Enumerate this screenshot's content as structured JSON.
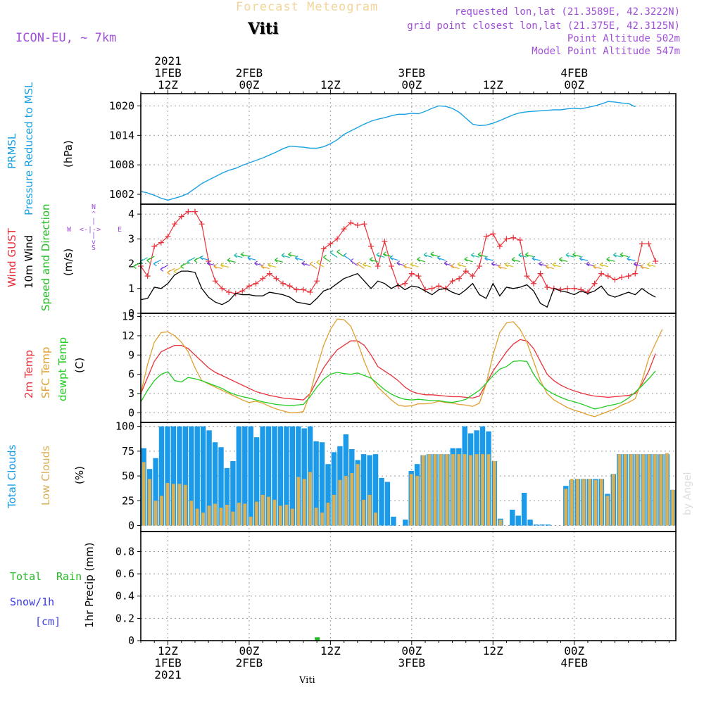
{
  "header": {
    "title": "Forecast Meteogram",
    "station": "Viti",
    "model": "ICON-EU, ~ 7km",
    "requested": "requested lon,lat (21.3589E, 42.3222N)",
    "grid_point": "grid point closest lon,lat (21.375E, 42.3125N)",
    "point_altitude": "Point Altitude 502m",
    "model_altitude": "Model Point Altitude 547m"
  },
  "footer": {
    "station": "Viti",
    "watermark": "by Angel"
  },
  "colors": {
    "pressure": "#1ba1e2",
    "gust": "#e8313a",
    "wind": "#000000",
    "direction": "#22bb22",
    "temp2m": "#e8313a",
    "sfctemp": "#e0a030",
    "dewpt": "#22cc22",
    "total_clouds": "#1a9ae8",
    "low_clouds": "#d9b057",
    "rain": "#22bb22",
    "snow": "#3a3ae8",
    "header": "#a050d8"
  },
  "time_axis": {
    "top_labels": [
      {
        "hour": 4,
        "lines": [
          "2021",
          "1FEB",
          "12Z"
        ]
      },
      {
        "hour": 16,
        "lines": [
          "2FEB",
          "00Z"
        ]
      },
      {
        "hour": 28,
        "lines": [
          "12Z"
        ]
      },
      {
        "hour": 40,
        "lines": [
          "3FEB",
          "00Z"
        ]
      },
      {
        "hour": 52,
        "lines": [
          "12Z"
        ]
      },
      {
        "hour": 64,
        "lines": [
          "4FEB",
          "00Z"
        ]
      }
    ],
    "bottom_labels": [
      {
        "hour": 4,
        "lines": [
          "12Z",
          "1FEB",
          "2021"
        ]
      },
      {
        "hour": 16,
        "lines": [
          "00Z",
          "2FEB"
        ]
      },
      {
        "hour": 28,
        "lines": [
          "12Z"
        ]
      },
      {
        "hour": 40,
        "lines": [
          "00Z",
          "3FEB"
        ]
      },
      {
        "hour": 52,
        "lines": [
          "12Z"
        ]
      },
      {
        "hour": 64,
        "lines": [
          "00Z",
          "4FEB"
        ]
      }
    ]
  },
  "panels": {
    "pressure": {
      "labels": [
        "PRMSL",
        "Pressure Reduced to MSL"
      ],
      "unit": "(hPa)",
      "ticks": [
        "1002",
        "1008",
        "1014",
        "1020"
      ]
    },
    "wind": {
      "labels": [
        "Wind GUST",
        "10m Wind",
        "Speed and Direction"
      ],
      "unit": "(m/s)",
      "ticks": [
        "0",
        "1",
        "2",
        "3",
        "4"
      ],
      "compass": {
        "n": "N",
        "s": "S",
        "w": "W",
        "e": "E",
        "arrow": "<-|->"
      }
    },
    "temp": {
      "labels": [
        "2m Temp",
        "SFC Temp",
        "dewpt Temp"
      ],
      "unit": "(C)",
      "ticks": [
        "0",
        "3",
        "6",
        "9",
        "12",
        "15"
      ]
    },
    "clouds": {
      "labels": [
        "Total Clouds",
        "Low Clouds"
      ],
      "unit": "(%)",
      "ticks": [
        "0",
        "25",
        "50",
        "75",
        "100"
      ]
    },
    "precip": {
      "labels": [
        "Total",
        "Rain",
        "Snow/1h",
        "[cm]"
      ],
      "unit": "1hr Precip (mm)",
      "ticks": [
        "0",
        "0.2",
        "0.4",
        "0.6",
        "0.8"
      ]
    }
  },
  "chart_data": {
    "type": "line",
    "x_unit": "hours from 2021-02-01 08Z (hourly steps)",
    "xlim": [
      0,
      79
    ],
    "series": [
      {
        "name": "PRMSL (hPa)",
        "panel": "pressure",
        "ylim": [
          1000,
          1022.5
        ],
        "values": [
          1002.6,
          1002.3,
          1001.8,
          1001.2,
          1000.8,
          1001.2,
          1001.6,
          1002.2,
          1003.2,
          1004.2,
          1004.9,
          1005.6,
          1006.3,
          1006.9,
          1007.3,
          1007.9,
          1008.4,
          1008.9,
          1009.4,
          1010.0,
          1010.6,
          1011.3,
          1011.8,
          1011.7,
          1011.6,
          1011.4,
          1011.4,
          1011.7,
          1012.3,
          1013.1,
          1014.2,
          1014.9,
          1015.6,
          1016.3,
          1016.9,
          1017.3,
          1017.6,
          1018.0,
          1018.3,
          1018.3,
          1018.5,
          1018.4,
          1018.9,
          1019.5,
          1020.0,
          1019.9,
          1019.5,
          1018.7,
          1017.5,
          1016.3,
          1016.0,
          1016.1,
          1016.5,
          1017.0,
          1017.6,
          1018.2,
          1018.6,
          1018.8,
          1018.9,
          1019.0,
          1019.1,
          1019.2,
          1019.2,
          1019.4,
          1019.5,
          1019.4,
          1019.7,
          1020.0,
          1020.4,
          1020.9,
          1020.8,
          1020.6,
          1020.5,
          1019.8
        ]
      },
      {
        "name": "Wind GUST (m/s)",
        "panel": "wind",
        "ylim": [
          0,
          4.4
        ],
        "values": [
          1.9,
          1.5,
          2.7,
          2.85,
          3.1,
          3.6,
          3.9,
          4.1,
          4.1,
          3.6,
          2.1,
          1.3,
          1.0,
          0.85,
          0.8,
          0.9,
          1.1,
          1.2,
          1.4,
          1.6,
          1.4,
          1.2,
          1.1,
          0.95,
          0.95,
          0.85,
          1.3,
          2.6,
          2.8,
          3.0,
          3.4,
          3.65,
          3.55,
          3.6,
          2.7,
          1.9,
          2.9,
          1.9,
          1.1,
          1.2,
          1.6,
          1.5,
          0.95,
          1.0,
          1.1,
          1.0,
          1.3,
          1.4,
          1.7,
          1.5,
          1.9,
          3.1,
          3.2,
          2.7,
          3.0,
          3.05,
          2.95,
          1.5,
          1.2,
          1.6,
          1.05,
          1.0,
          0.95,
          1.0,
          1.0,
          0.95,
          0.85,
          1.2,
          1.6,
          1.5,
          1.35,
          1.45,
          1.5,
          1.6,
          2.8,
          2.8,
          2.1
        ]
      },
      {
        "name": "10m Wind (m/s)",
        "panel": "wind",
        "ylim": [
          0,
          4.4
        ],
        "values": [
          0.55,
          0.6,
          1.05,
          1.0,
          1.2,
          1.55,
          1.7,
          1.7,
          1.65,
          1.0,
          0.65,
          0.45,
          0.35,
          0.5,
          0.8,
          0.75,
          0.75,
          0.7,
          0.7,
          0.85,
          0.8,
          0.75,
          0.65,
          0.45,
          0.4,
          0.35,
          0.6,
          0.9,
          1.0,
          1.2,
          1.4,
          1.5,
          1.6,
          1.3,
          1.0,
          1.3,
          1.2,
          1.0,
          1.15,
          0.95,
          1.1,
          1.05,
          0.9,
          0.75,
          0.95,
          1.0,
          0.85,
          0.75,
          0.95,
          1.2,
          0.75,
          0.6,
          1.2,
          0.7,
          1.05,
          1.0,
          1.05,
          1.15,
          0.9,
          0.4,
          0.25,
          1.0,
          0.9,
          0.85,
          0.75,
          0.9,
          0.8,
          0.9,
          1.1,
          0.75,
          0.65,
          0.75,
          0.85,
          0.75,
          1.0,
          0.8,
          0.65
        ]
      },
      {
        "name": "2m Temp (C)",
        "panel": "temp",
        "ylim": [
          -1.5,
          15.5
        ],
        "values": [
          3.0,
          5.5,
          8.0,
          9.5,
          10.0,
          10.5,
          10.5,
          10.0,
          9.0,
          8.0,
          7.0,
          6.3,
          5.8,
          5.3,
          4.8,
          4.3,
          3.8,
          3.3,
          3.0,
          2.7,
          2.5,
          2.3,
          2.2,
          2.1,
          2.0,
          3.0,
          5.0,
          7.0,
          8.5,
          9.8,
          10.5,
          11.2,
          11.2,
          10.5,
          9.0,
          7.2,
          6.5,
          5.8,
          5.0,
          4.0,
          3.3,
          3.0,
          2.8,
          2.8,
          2.7,
          2.6,
          2.5,
          2.5,
          2.4,
          2.3,
          2.6,
          4.5,
          6.5,
          8.0,
          9.5,
          10.7,
          11.4,
          11.2,
          10.0,
          8.0,
          6.0,
          5.0,
          4.3,
          3.8,
          3.4,
          3.1,
          2.8,
          2.6,
          2.5,
          2.4,
          2.5,
          2.6,
          2.7,
          3.0,
          4.5,
          6.5,
          9.2
        ]
      },
      {
        "name": "SFC Temp (C)",
        "panel": "temp",
        "ylim": [
          -1.5,
          15.5
        ],
        "values": [
          3.0,
          7.5,
          11.0,
          12.5,
          12.6,
          12.0,
          11.0,
          9.5,
          7.0,
          5.0,
          4.5,
          4.0,
          3.5,
          3.0,
          2.5,
          2.0,
          1.6,
          1.8,
          1.5,
          1.0,
          0.6,
          0.3,
          0.0,
          0.0,
          0.2,
          3.0,
          7.0,
          10.5,
          13.0,
          14.6,
          14.5,
          13.5,
          11.0,
          8.0,
          5.5,
          4.0,
          3.0,
          2.0,
          1.2,
          1.0,
          1.1,
          1.4,
          1.4,
          1.5,
          1.8,
          1.6,
          1.5,
          1.3,
          1.2,
          1.0,
          1.5,
          4.5,
          9.0,
          12.5,
          14.0,
          14.2,
          13.0,
          11.0,
          8.0,
          5.0,
          3.0,
          2.0,
          1.4,
          0.8,
          0.4,
          0.1,
          -0.3,
          -0.6,
          -0.2,
          0.2,
          0.6,
          1.2,
          1.6,
          2.2,
          5.0,
          8.5,
          10.8,
          13.0
        ]
      },
      {
        "name": "dewpt Temp (C)",
        "panel": "temp",
        "ylim": [
          -1.5,
          15.5
        ],
        "values": [
          1.7,
          3.5,
          5.0,
          6.0,
          6.4,
          5.0,
          4.8,
          5.5,
          5.3,
          5.0,
          4.6,
          4.2,
          3.8,
          3.2,
          2.8,
          2.5,
          2.3,
          2.0,
          1.7,
          1.5,
          1.3,
          1.2,
          1.1,
          1.2,
          1.3,
          2.5,
          4.0,
          5.2,
          6.0,
          6.3,
          6.1,
          6.0,
          6.2,
          5.8,
          5.4,
          4.5,
          3.6,
          2.9,
          2.4,
          2.1,
          2.0,
          2.1,
          2.0,
          1.9,
          1.9,
          1.7,
          1.6,
          1.8,
          2.1,
          2.8,
          3.5,
          4.6,
          5.8,
          6.8,
          7.2,
          8.0,
          8.1,
          8.0,
          6.0,
          4.5,
          3.5,
          2.9,
          2.4,
          2.0,
          1.7,
          1.4,
          1.0,
          0.6,
          0.8,
          1.1,
          1.3,
          1.6,
          2.3,
          3.2,
          4.2,
          5.3,
          6.5
        ]
      },
      {
        "name": "Total Clouds (%)",
        "panel": "clouds",
        "ylim": [
          -6,
          104
        ],
        "type": "bar",
        "values": [
          78,
          57,
          68,
          100,
          100,
          100,
          100,
          100,
          100,
          100,
          100,
          96,
          84,
          79,
          58,
          65,
          100,
          100,
          100,
          89,
          100,
          100,
          100,
          100,
          100,
          100,
          100,
          98,
          100,
          85,
          84,
          62,
          74,
          80,
          92,
          77,
          66,
          72,
          71,
          72,
          48,
          44,
          9,
          0,
          6,
          55,
          62,
          71,
          72,
          72,
          72,
          72,
          78,
          78,
          100,
          93,
          96,
          100,
          95,
          65,
          7,
          0,
          16,
          10,
          33,
          6,
          1,
          1,
          1,
          0,
          0,
          40,
          46,
          47,
          47,
          47,
          47,
          47,
          32,
          52,
          72,
          72,
          72,
          72,
          72,
          72,
          72,
          72,
          72,
          36
        ]
      },
      {
        "name": "Low Clouds (%)",
        "panel": "clouds",
        "ylim": [
          -6,
          104
        ],
        "type": "bar",
        "values": [
          64,
          47,
          25,
          30,
          43,
          42,
          42,
          41,
          25,
          17,
          13,
          20,
          22,
          18,
          21,
          14,
          23,
          22,
          9,
          24,
          31,
          29,
          26,
          20,
          21,
          17,
          49,
          47,
          54,
          18,
          13,
          23,
          31,
          46,
          50,
          53,
          62,
          26,
          31,
          13,
          0,
          0,
          0,
          0,
          0,
          52,
          50,
          71,
          72,
          72,
          72,
          72,
          72,
          72,
          72,
          71,
          72,
          72,
          72,
          65,
          6,
          0,
          0,
          0,
          0,
          0,
          0,
          0,
          0,
          0,
          0,
          37,
          47,
          47,
          47,
          47,
          46,
          47,
          30,
          52,
          72,
          72,
          72,
          72,
          72,
          72,
          72,
          72,
          73,
          36
        ]
      },
      {
        "name": "Total precip (mm/1h)",
        "panel": "precip",
        "ylim": [
          0,
          0.98
        ],
        "type": "bar",
        "values": [
          0,
          0,
          0,
          0,
          0,
          0,
          0,
          0,
          0,
          0,
          0,
          0,
          0,
          0,
          0,
          0,
          0,
          0,
          0,
          0,
          0,
          0,
          0,
          0,
          0,
          0,
          0.03,
          0,
          0,
          0,
          0,
          0,
          0,
          0,
          0,
          0,
          0,
          0,
          0,
          0,
          0,
          0,
          0,
          0,
          0,
          0,
          0,
          0,
          0,
          0,
          0,
          0,
          0,
          0,
          0,
          0,
          0,
          0,
          0,
          0,
          0,
          0,
          0,
          0,
          0,
          0,
          0,
          0,
          0,
          0,
          0,
          0,
          0,
          0,
          0,
          0,
          0,
          0,
          0
        ]
      }
    ]
  }
}
